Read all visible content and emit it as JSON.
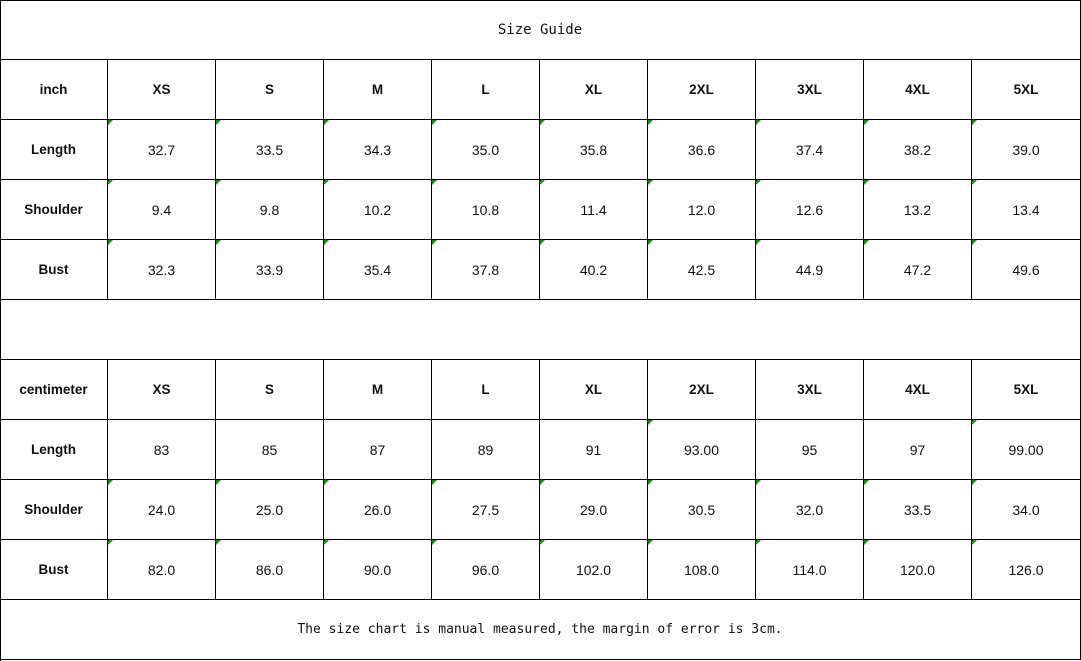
{
  "title": "Size Guide",
  "sizes": [
    "XS",
    "S",
    "M",
    "L",
    "XL",
    "2XL",
    "3XL",
    "4XL",
    "5XL"
  ],
  "tables": [
    {
      "unit": "inch",
      "rows": [
        {
          "label": "Length",
          "values": [
            "32.7",
            "33.5",
            "34.3",
            "35.0",
            "35.8",
            "36.6",
            "37.4",
            "38.2",
            "39.0"
          ],
          "flags": [
            1,
            1,
            1,
            1,
            1,
            1,
            1,
            1,
            1
          ]
        },
        {
          "label": "Shoulder",
          "values": [
            "9.4",
            "9.8",
            "10.2",
            "10.8",
            "11.4",
            "12.0",
            "12.6",
            "13.2",
            "13.4"
          ],
          "flags": [
            1,
            1,
            1,
            1,
            1,
            1,
            1,
            1,
            1
          ]
        },
        {
          "label": "Bust",
          "values": [
            "32.3",
            "33.9",
            "35.4",
            "37.8",
            "40.2",
            "42.5",
            "44.9",
            "47.2",
            "49.6"
          ],
          "flags": [
            1,
            1,
            1,
            1,
            1,
            1,
            1,
            1,
            1
          ]
        }
      ]
    },
    {
      "unit": "centimeter",
      "rows": [
        {
          "label": "Length",
          "values": [
            "83",
            "85",
            "87",
            "89",
            "91",
            "93.00",
            "95",
            "97",
            "99.00"
          ],
          "flags": [
            0,
            0,
            0,
            0,
            0,
            1,
            0,
            0,
            1
          ]
        },
        {
          "label": "Shoulder",
          "values": [
            "24.0",
            "25.0",
            "26.0",
            "27.5",
            "29.0",
            "30.5",
            "32.0",
            "33.5",
            "34.0"
          ],
          "flags": [
            1,
            1,
            1,
            1,
            1,
            1,
            1,
            1,
            1
          ]
        },
        {
          "label": "Bust",
          "values": [
            "82.0",
            "86.0",
            "90.0",
            "96.0",
            "102.0",
            "108.0",
            "114.0",
            "120.0",
            "126.0"
          ],
          "flags": [
            1,
            1,
            1,
            1,
            1,
            1,
            1,
            1,
            1
          ]
        }
      ]
    }
  ],
  "note": "The size chart is manual measured, the margin of error is 3cm.",
  "colors": {
    "flag": "#1a8a1a",
    "grid": "#000000"
  }
}
